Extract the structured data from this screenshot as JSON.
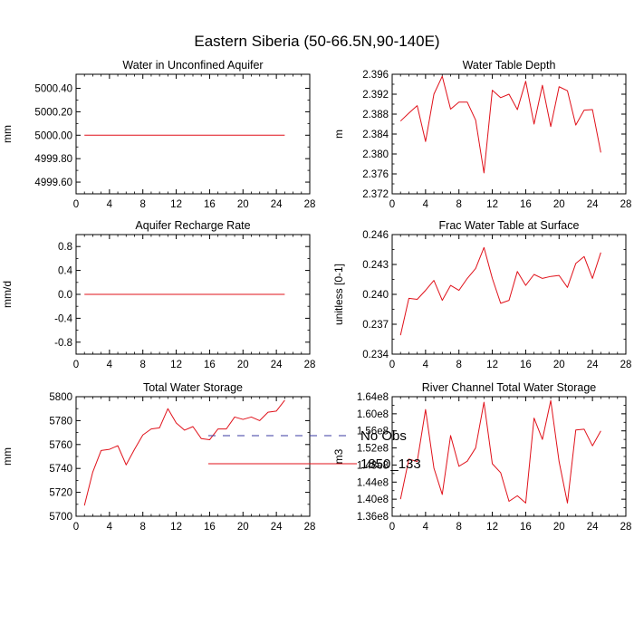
{
  "figure_title": "Eastern Siberia (50-66.5N,90-140E)",
  "legend": {
    "entries": [
      {
        "label": "No Obs",
        "color": "#3a3aa0",
        "style": "dashed"
      },
      {
        "label": "1850_133",
        "color": "#e0111a",
        "style": "solid"
      }
    ]
  },
  "chart_data": [
    {
      "type": "line",
      "title": "Water in Unconfined Aquifer",
      "ylabel": "mm",
      "xlim": [
        0,
        28
      ],
      "ylim": [
        4999.5,
        5000.52
      ],
      "xticks": [
        0,
        4,
        8,
        12,
        16,
        20,
        24,
        28
      ],
      "yticks": [
        4999.6,
        4999.8,
        5000.0,
        5000.2,
        5000.4
      ],
      "ytick_labels": [
        "4999.60",
        "4999.80",
        "5000.00",
        "5000.20",
        "5000.40"
      ],
      "x": [
        1,
        2,
        3,
        4,
        5,
        6,
        7,
        8,
        9,
        10,
        11,
        12,
        13,
        14,
        15,
        16,
        17,
        18,
        19,
        20,
        21,
        22,
        23,
        24,
        25
      ],
      "series": [
        {
          "name": "1850_133",
          "color": "#e0111a",
          "values": [
            5000,
            5000,
            5000,
            5000,
            5000,
            5000,
            5000,
            5000,
            5000,
            5000,
            5000,
            5000,
            5000,
            5000,
            5000,
            5000,
            5000,
            5000,
            5000,
            5000,
            5000,
            5000,
            5000,
            5000,
            5000
          ]
        }
      ]
    },
    {
      "type": "line",
      "title": "Water Table Depth",
      "ylabel": "m",
      "xlim": [
        0,
        28
      ],
      "ylim": [
        2.372,
        2.396
      ],
      "xticks": [
        0,
        4,
        8,
        12,
        16,
        20,
        24,
        28
      ],
      "yticks": [
        2.372,
        2.376,
        2.38,
        2.384,
        2.388,
        2.392,
        2.396
      ],
      "ytick_labels": [
        "2.372",
        "2.376",
        "2.380",
        "2.384",
        "2.388",
        "2.392",
        "2.396"
      ],
      "x": [
        1,
        2,
        3,
        4,
        5,
        6,
        7,
        8,
        9,
        10,
        11,
        12,
        13,
        14,
        15,
        16,
        17,
        18,
        19,
        20,
        21,
        22,
        23,
        24,
        25
      ],
      "series": [
        {
          "name": "1850_133",
          "color": "#e0111a",
          "values": [
            2.3866,
            2.3882,
            2.3897,
            2.3825,
            2.392,
            2.3956,
            2.389,
            2.3904,
            2.3904,
            2.3868,
            2.3762,
            2.3928,
            2.3913,
            2.392,
            2.3889,
            2.3946,
            2.386,
            2.3938,
            2.3855,
            2.3935,
            2.3927,
            2.3858,
            2.3888,
            2.3889,
            2.3803
          ]
        }
      ]
    },
    {
      "type": "line",
      "title": "Aquifer Recharge Rate",
      "ylabel": "mm/d",
      "xlim": [
        0,
        28
      ],
      "ylim": [
        -1.0,
        1.0
      ],
      "xticks": [
        0,
        4,
        8,
        12,
        16,
        20,
        24,
        28
      ],
      "yticks": [
        -0.8,
        -0.4,
        0.0,
        0.4,
        0.8
      ],
      "ytick_labels": [
        "-0.8",
        "-0.4",
        "0.0",
        "0.4",
        "0.8"
      ],
      "x": [
        1,
        2,
        3,
        4,
        5,
        6,
        7,
        8,
        9,
        10,
        11,
        12,
        13,
        14,
        15,
        16,
        17,
        18,
        19,
        20,
        21,
        22,
        23,
        24,
        25
      ],
      "series": [
        {
          "name": "1850_133",
          "color": "#e0111a",
          "values": [
            0,
            0,
            0,
            0,
            0,
            0,
            0,
            0,
            0,
            0,
            0,
            0,
            0,
            0,
            0,
            0,
            0,
            0,
            0,
            0,
            0,
            0,
            0,
            0,
            0
          ]
        }
      ]
    },
    {
      "type": "line",
      "title": "Frac Water Table at Surface",
      "ylabel": "unitless [0-1]",
      "xlim": [
        0,
        28
      ],
      "ylim": [
        0.234,
        0.246
      ],
      "xticks": [
        0,
        4,
        8,
        12,
        16,
        20,
        24,
        28
      ],
      "yticks": [
        0.234,
        0.237,
        0.24,
        0.243,
        0.246
      ],
      "ytick_labels": [
        "0.234",
        "0.237",
        "0.240",
        "0.243",
        "0.246"
      ],
      "x": [
        1,
        2,
        3,
        4,
        5,
        6,
        7,
        8,
        9,
        10,
        11,
        12,
        13,
        14,
        15,
        16,
        17,
        18,
        19,
        20,
        21,
        22,
        23,
        24,
        25
      ],
      "series": [
        {
          "name": "1850_133",
          "color": "#e0111a",
          "values": [
            0.2359,
            0.2396,
            0.2395,
            0.2404,
            0.2414,
            0.2394,
            0.2409,
            0.2404,
            0.2416,
            0.2426,
            0.2447,
            0.2416,
            0.2391,
            0.2394,
            0.2423,
            0.2409,
            0.242,
            0.2416,
            0.2418,
            0.2419,
            0.2407,
            0.2431,
            0.2438,
            0.2416,
            0.2442
          ]
        }
      ]
    },
    {
      "type": "line",
      "title": "Total Water Storage",
      "ylabel": "mm",
      "xlim": [
        0,
        28
      ],
      "ylim": [
        5700,
        5800
      ],
      "xticks": [
        0,
        4,
        8,
        12,
        16,
        20,
        24,
        28
      ],
      "yticks": [
        5700,
        5720,
        5740,
        5760,
        5780,
        5800
      ],
      "ytick_labels": [
        "5700",
        "5720",
        "5740",
        "5760",
        "5780",
        "5800"
      ],
      "x": [
        1,
        2,
        3,
        4,
        5,
        6,
        7,
        8,
        9,
        10,
        11,
        12,
        13,
        14,
        15,
        16,
        17,
        18,
        19,
        20,
        21,
        22,
        23,
        24,
        25
      ],
      "series": [
        {
          "name": "1850_133",
          "color": "#e0111a",
          "values": [
            5709,
            5737,
            5755,
            5756,
            5759,
            5743,
            5756,
            5768,
            5773,
            5774,
            5790,
            5778,
            5772,
            5775,
            5765,
            5764,
            5773,
            5773,
            5783,
            5781,
            5783,
            5780,
            5787,
            5788,
            5797
          ]
        }
      ]
    },
    {
      "type": "line",
      "title": "River Channel Total Water Storage",
      "ylabel": "m3",
      "xlim": [
        0,
        28
      ],
      "ylim": [
        136000000.0,
        164000000.0
      ],
      "xticks": [
        0,
        4,
        8,
        12,
        16,
        20,
        24,
        28
      ],
      "yticks": [
        136000000.0,
        140000000.0,
        144000000.0,
        148000000.0,
        152000000.0,
        156000000.0,
        160000000.0,
        164000000.0
      ],
      "ytick_labels": [
        "1.36e8",
        "1.40e8",
        "1.44e8",
        "1.48e8",
        "1.52e8",
        "1.56e8",
        "1.60e8",
        "1.64e8"
      ],
      "x": [
        1,
        2,
        3,
        4,
        5,
        6,
        7,
        8,
        9,
        10,
        11,
        12,
        13,
        14,
        15,
        16,
        17,
        18,
        19,
        20,
        21,
        22,
        23,
        24,
        25
      ],
      "series": [
        {
          "name": "1850_133",
          "color": "#e0111a",
          "values": [
            140000000.0,
            149400000.0,
            148800000.0,
            161000000.0,
            147300000.0,
            141100000.0,
            154900000.0,
            147700000.0,
            148900000.0,
            152000000.0,
            162700000.0,
            148300000.0,
            146200000.0,
            139500000.0,
            140800000.0,
            139100000.0,
            159000000.0,
            154000000.0,
            163100000.0,
            148800000.0,
            139100000.0,
            156200000.0,
            156400000.0,
            152500000.0,
            156000000.0
          ]
        }
      ]
    }
  ]
}
